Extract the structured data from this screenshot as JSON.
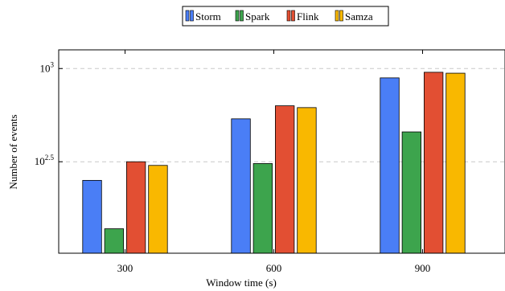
{
  "chart_data": {
    "type": "bar",
    "title": "",
    "xlabel": "Window time (s)",
    "ylabel": "Number of events",
    "categories": [
      "300",
      "600",
      "900"
    ],
    "y_scale": "log10",
    "ylim": [
      102,
      1260
    ],
    "y_ticks": [
      {
        "value": 316,
        "base": "10",
        "exp": "2.5"
      },
      {
        "value": 1000,
        "base": "10",
        "exp": "3"
      }
    ],
    "grid": "horizontal-dashed",
    "legend_position": "top-center",
    "series": [
      {
        "name": "Storm",
        "color": "#4a7ef6",
        "values": [
          251,
          537,
          891
        ]
      },
      {
        "name": "Spark",
        "color": "#3da44d",
        "values": [
          138,
          309,
          457
        ]
      },
      {
        "name": "Flink",
        "color": "#e24f33",
        "values": [
          316,
          631,
          955
        ]
      },
      {
        "name": "Samza",
        "color": "#f9b800",
        "values": [
          302,
          617,
          944
        ]
      }
    ]
  }
}
